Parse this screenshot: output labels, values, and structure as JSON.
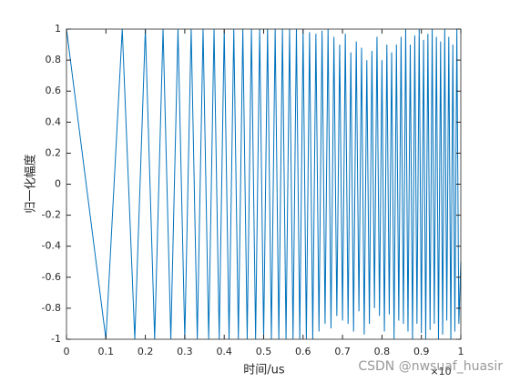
{
  "chart_data": {
    "type": "line",
    "x_label": "时间/us",
    "y_label": "归一化幅度",
    "x_exponent_label": "×10",
    "watermark": "CSDN @nwsuaf_huasir",
    "x": [
      0,
      0.1,
      0.1414,
      0.1732,
      0.2,
      0.2236,
      0.2449,
      0.2646,
      0.2828,
      0.3,
      0.3162,
      0.3317,
      0.3464,
      0.3606,
      0.3742,
      0.3873,
      0.4,
      0.4123,
      0.4243,
      0.4359,
      0.4472,
      0.4583,
      0.469,
      0.4796,
      0.4899,
      0.5,
      0.5099,
      0.5196,
      0.5292,
      0.5385,
      0.5477,
      0.5568,
      0.5657,
      0.5745,
      0.5831,
      0.5916,
      0.6,
      0.6083,
      0.6164,
      0.6245,
      0.6325,
      0.6403,
      0.6481,
      0.6557,
      0.6633,
      0.6708,
      0.6782,
      0.6856,
      0.6928,
      0.7,
      0.7071,
      0.7141,
      0.7211,
      0.728,
      0.7348,
      0.7416,
      0.7483,
      0.755,
      0.7616,
      0.7681,
      0.7746,
      0.781,
      0.7874,
      0.7937,
      0.8,
      0.8062,
      0.8124,
      0.8185,
      0.8246,
      0.8307,
      0.8367,
      0.8426,
      0.8485,
      0.8544,
      0.8602,
      0.866,
      0.8718,
      0.8775,
      0.8832,
      0.8888,
      0.8944,
      0.9,
      0.9055,
      0.911,
      0.9165,
      0.922,
      0.9274,
      0.9327,
      0.9381,
      0.9434,
      0.9487,
      0.9539,
      0.9592,
      0.9644,
      0.9695,
      0.9747,
      0.9798,
      0.9849,
      0.9899,
      0.995,
      1
    ],
    "series": [
      {
        "color": "#0072bd",
        "values": [
          1,
          -1,
          1,
          -1,
          1,
          -1,
          1,
          -1,
          1,
          -1,
          1,
          -1,
          1,
          -1,
          1,
          -1,
          1,
          -1,
          1,
          -1,
          1,
          -1,
          1,
          -1,
          1,
          -1,
          1,
          -1,
          1,
          -1,
          1,
          -1,
          1,
          -1,
          1,
          -1,
          1,
          -1,
          0.98,
          -1,
          0.97,
          -0.95,
          0.99,
          -0.9,
          1,
          -0.93,
          0.95,
          -0.85,
          0.9,
          -0.88,
          0.97,
          -0.9,
          0.85,
          -0.95,
          0.92,
          -0.82,
          0.88,
          -0.97,
          0.8,
          -0.9,
          0.86,
          -0.8,
          0.95,
          -0.85,
          0.8,
          -0.95,
          0.9,
          -0.84,
          0.85,
          -1,
          0.9,
          -0.88,
          0.95,
          -0.9,
          1,
          -0.95,
          0.9,
          -1,
          0.96,
          -0.9,
          1,
          -0.96,
          0.93,
          -1,
          0.97,
          -0.94,
          1,
          -0.9,
          0.95,
          -1,
          0.92,
          -0.97,
          1,
          -0.88,
          0.95,
          -1,
          0.9,
          -0.95,
          1,
          -0.9,
          -0.5
        ]
      }
    ],
    "xlim": [
      0,
      1
    ],
    "ylim": [
      -1,
      1
    ],
    "xticks": [
      0,
      0.1,
      0.2,
      0.3,
      0.4,
      0.5,
      0.6,
      0.7,
      0.8,
      0.9,
      1
    ],
    "yticks": [
      -1,
      -0.8,
      -0.6,
      -0.4,
      -0.2,
      0,
      0.2,
      0.4,
      0.6,
      0.8,
      1
    ]
  }
}
